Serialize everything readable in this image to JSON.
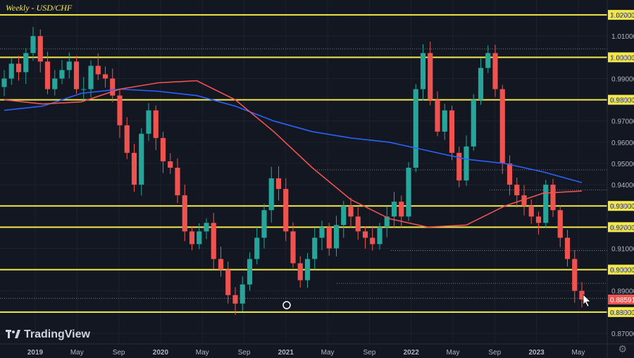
{
  "title": "Weekly - USD/CHF",
  "brand": "TradingView",
  "colors": {
    "background": "#131722",
    "up": "#26a69a",
    "down": "#ef5350",
    "ma_red": "#ef5350",
    "ma_blue": "#2962ff",
    "level_line": "#f5e94a",
    "grid": "#1e2230",
    "price_tag": "#ef5350"
  },
  "chart_data": {
    "type": "candlestick",
    "timeframe": "Weekly",
    "symbol": "USD/CHF",
    "x_ticks": [
      "2019",
      "May",
      "Sep",
      "2020",
      "May",
      "Sep",
      "2021",
      "May",
      "Sep",
      "2022",
      "May",
      "Sep",
      "2023",
      "May"
    ],
    "y_ticks": [
      1.02,
      1.01,
      1.0,
      0.99,
      0.98,
      0.97,
      0.96,
      0.95,
      0.94,
      0.93,
      0.92,
      0.91,
      0.9,
      0.89,
      0.88,
      0.87
    ],
    "ylim": [
      0.865,
      1.027
    ],
    "y_tick_labels": [
      "1.02000",
      "1.01000",
      "1.00000",
      "0.99000",
      "0.98000",
      "0.97000",
      "0.96000",
      "0.95000",
      "0.94000",
      "0.93000",
      "0.92000",
      "0.91000",
      "0.90000",
      "0.89000",
      "0.88000",
      "0.87000"
    ],
    "horizontal_levels": [
      1.02,
      1.0,
      0.98,
      0.93,
      0.92,
      0.9,
      0.88
    ],
    "last_price": 0.88591,
    "last_price_label": "0.88591",
    "ma_red": [
      0.98,
      0.978,
      0.979,
      0.985,
      0.988,
      0.989,
      0.98,
      0.965,
      0.948,
      0.933,
      0.924,
      0.92,
      0.921,
      0.93,
      0.936,
      0.937
    ],
    "ma_blue": [
      0.975,
      0.977,
      0.983,
      0.985,
      0.984,
      0.982,
      0.977,
      0.97,
      0.965,
      0.962,
      0.96,
      0.956,
      0.952,
      0.95,
      0.946,
      0.941
    ],
    "closes": [
      0.99,
      0.997,
      0.993,
      1.002,
      1.01,
      0.998,
      0.985,
      0.99,
      0.994,
      0.998,
      0.985,
      0.985,
      0.996,
      0.992,
      0.99,
      0.982,
      0.968,
      0.955,
      0.94,
      0.964,
      0.975,
      0.962,
      0.951,
      0.948,
      0.935,
      0.918,
      0.912,
      0.918,
      0.922,
      0.905,
      0.9,
      0.888,
      0.884,
      0.893,
      0.905,
      0.915,
      0.928,
      0.943,
      0.938,
      0.918,
      0.903,
      0.895,
      0.905,
      0.915,
      0.92,
      0.91,
      0.921,
      0.93,
      0.925,
      0.918,
      0.915,
      0.912,
      0.92,
      0.925,
      0.932,
      0.925,
      0.948,
      0.985,
      1.002,
      0.98,
      0.965,
      0.975,
      0.955,
      0.942,
      0.958,
      0.98,
      0.995,
      1.002,
      0.985,
      0.95,
      0.94,
      0.935,
      0.93,
      0.925,
      0.922,
      0.94,
      0.928,
      0.915,
      0.905,
      0.89,
      0.8859
    ]
  }
}
